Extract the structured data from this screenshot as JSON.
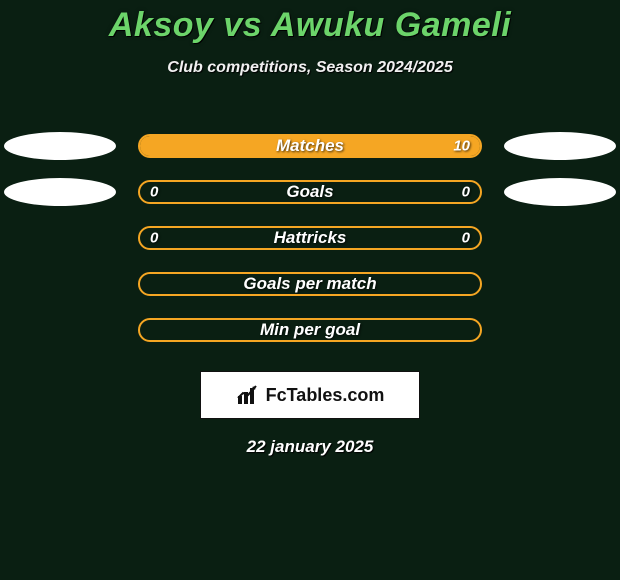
{
  "background_color": "#0a1f12",
  "title": "Aksoy vs Awuku Gameli",
  "title_color": "#6cd46a",
  "subtitle": "Club competitions, Season 2024/2025",
  "date": "22 january 2025",
  "logo_text": "FcTables.com",
  "bar_border_color": "#f5a623",
  "ellipse_colors": {
    "left": "#ffffff",
    "right": "#ffffff"
  },
  "stats": [
    {
      "label": "Matches",
      "left_value": "",
      "right_value": "10",
      "left_fill_pct": 0,
      "right_fill_pct": 100,
      "left_fill_color": "#f5a623",
      "right_fill_color": "#f5a623",
      "show_left_ellipse": true,
      "show_right_ellipse": true
    },
    {
      "label": "Goals",
      "left_value": "0",
      "right_value": "0",
      "left_fill_pct": 0,
      "right_fill_pct": 0,
      "left_fill_color": "#f5a623",
      "right_fill_color": "#f5a623",
      "show_left_ellipse": true,
      "show_right_ellipse": true
    },
    {
      "label": "Hattricks",
      "left_value": "0",
      "right_value": "0",
      "left_fill_pct": 0,
      "right_fill_pct": 0,
      "left_fill_color": "#f5a623",
      "right_fill_color": "#f5a623",
      "show_left_ellipse": false,
      "show_right_ellipse": false
    },
    {
      "label": "Goals per match",
      "left_value": "",
      "right_value": "",
      "left_fill_pct": 0,
      "right_fill_pct": 0,
      "left_fill_color": "#f5a623",
      "right_fill_color": "#f5a623",
      "show_left_ellipse": false,
      "show_right_ellipse": false
    },
    {
      "label": "Min per goal",
      "left_value": "",
      "right_value": "",
      "left_fill_pct": 0,
      "right_fill_pct": 0,
      "left_fill_color": "#f5a623",
      "right_fill_color": "#f5a623",
      "show_left_ellipse": false,
      "show_right_ellipse": false
    }
  ]
}
